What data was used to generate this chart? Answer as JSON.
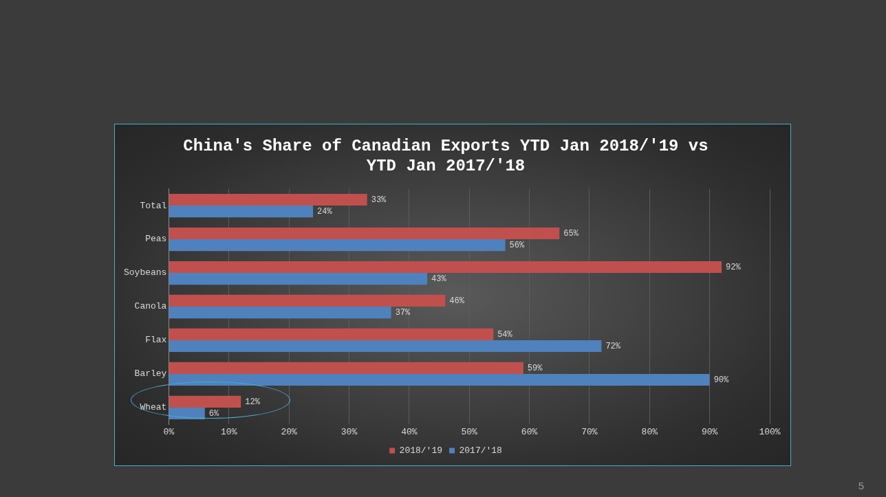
{
  "chart_data": {
    "type": "bar",
    "orientation": "horizontal",
    "title": "China's Share of Canadian Exports YTD Jan 2018/'19 vs YTD Jan 2017/'18",
    "categories": [
      "Total",
      "Peas",
      "Soybeans",
      "Canola",
      "Flax",
      "Barley",
      "Wheat"
    ],
    "series": [
      {
        "name": "2018/'19",
        "color": "#c0504d",
        "values": [
          33,
          65,
          92,
          46,
          54,
          59,
          12
        ],
        "value_labels": [
          "33%",
          "65%",
          "92%",
          "46%",
          "54%",
          "59%",
          "12%"
        ]
      },
      {
        "name": "2017/'18",
        "color": "#4f81bd",
        "values": [
          24,
          56,
          43,
          37,
          72,
          90,
          6
        ],
        "value_labels": [
          "24%",
          "56%",
          "43%",
          "37%",
          "72%",
          "90%",
          "6%"
        ]
      }
    ],
    "xlim": [
      0,
      100
    ],
    "xticks": [
      {
        "value": 0,
        "label": "0%"
      },
      {
        "value": 10,
        "label": "10%"
      },
      {
        "value": 20,
        "label": "20%"
      },
      {
        "value": 30,
        "label": "30%"
      },
      {
        "value": 40,
        "label": "40%"
      },
      {
        "value": 50,
        "label": "50%"
      },
      {
        "value": 60,
        "label": "60%"
      },
      {
        "value": 70,
        "label": "70%"
      },
      {
        "value": 80,
        "label": "80%"
      },
      {
        "value": 90,
        "label": "90%"
      },
      {
        "value": 100,
        "label": "100%"
      }
    ],
    "grid": "x",
    "legend": "bottom",
    "annotations": [
      "5"
    ]
  }
}
